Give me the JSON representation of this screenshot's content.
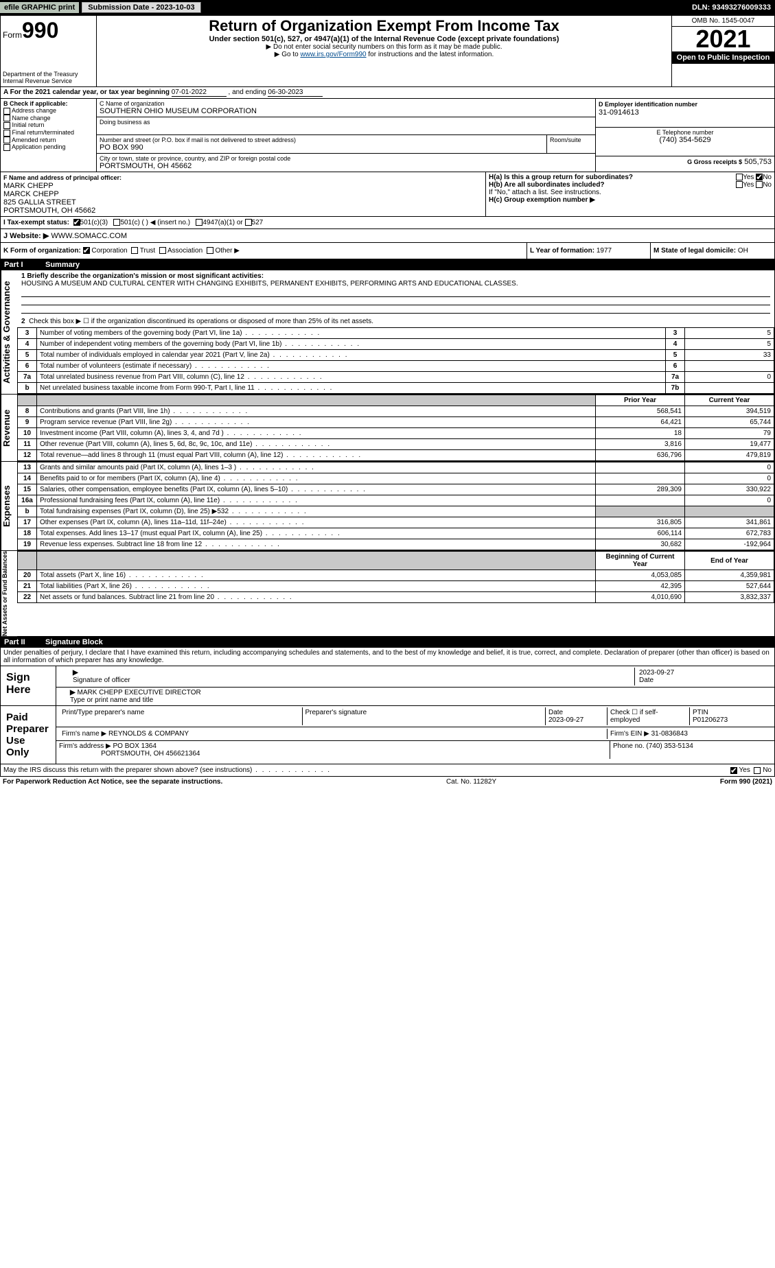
{
  "topbar": {
    "efile": "efile GRAPHIC print",
    "submit_btn": "Submission Date - 2023-10-03",
    "dln": "DLN: 93493276009333"
  },
  "header": {
    "form_word": "Form",
    "form_num": "990",
    "dept": "Department of the Treasury",
    "irs": "Internal Revenue Service",
    "title": "Return of Organization Exempt From Income Tax",
    "sub": "Under section 501(c), 527, or 4947(a)(1) of the Internal Revenue Code (except private foundations)",
    "note1": "▶ Do not enter social security numbers on this form as it may be made public.",
    "note2_pre": "▶ Go to ",
    "note2_link": "www.irs.gov/Form990",
    "note2_post": " for instructions and the latest information.",
    "omb": "OMB No. 1545-0047",
    "year": "2021",
    "opentopublic": "Open to Public Inspection"
  },
  "period": {
    "label_pre": "A For the 2021 calendar year, or tax year beginning ",
    "begin": "07-01-2022",
    "mid": " , and ending ",
    "end": "06-30-2023"
  },
  "boxB": {
    "label": "B Check if applicable:",
    "opts": [
      "Address change",
      "Name change",
      "Initial return",
      "Final return/terminated",
      "Amended return",
      "Application pending"
    ]
  },
  "boxC": {
    "name_label": "C Name of organization",
    "name": "SOUTHERN OHIO MUSEUM CORPORATION",
    "dba_label": "Doing business as",
    "dba": "",
    "street_label": "Number and street (or P.O. box if mail is not delivered to street address)",
    "room_label": "Room/suite",
    "street": "PO BOX 990",
    "city_label": "City or town, state or province, country, and ZIP or foreign postal code",
    "city": "PORTSMOUTH, OH  45662"
  },
  "boxD": {
    "label": "D Employer identification number",
    "value": "31-0914613"
  },
  "boxE": {
    "label": "E Telephone number",
    "value": "(740) 354-5629"
  },
  "boxG": {
    "label": "G Gross receipts $",
    "value": "505,753"
  },
  "boxF": {
    "label": "F  Name and address of principal officer:",
    "line1": "MARK CHEPP",
    "line2": "MARCK CHEPP",
    "line3": "825 GALLIA STREET",
    "line4": "PORTSMOUTH, OH  45662"
  },
  "boxH": {
    "a_label": "H(a)  Is this a group return for subordinates?",
    "a_yes": "Yes",
    "a_no": "No",
    "b_label": "H(b)  Are all subordinates included?",
    "b_note": "If \"No,\" attach a list. See instructions.",
    "c_label": "H(c)  Group exemption number ▶"
  },
  "boxI": {
    "label": "I   Tax-exempt status:",
    "o1": "501(c)(3)",
    "o2": "501(c) (  ) ◀ (insert no.)",
    "o3": "4947(a)(1) or",
    "o4": "527"
  },
  "boxJ": {
    "label": "J   Website: ▶",
    "value": "WWW.SOMACC.COM"
  },
  "boxK": {
    "label": "K Form of organization:",
    "o1": "Corporation",
    "o2": "Trust",
    "o3": "Association",
    "o4": "Other ▶"
  },
  "boxL": {
    "label": "L Year of formation:",
    "value": "1977"
  },
  "boxM": {
    "label": "M State of legal domicile:",
    "value": "OH"
  },
  "part1": {
    "header": "Summary",
    "sideA": "Activities & Governance",
    "sideR": "Revenue",
    "sideE": "Expenses",
    "sideN": "Net Assets or Fund Balances",
    "l1_label": "1  Briefly describe the organization's mission or most significant activities:",
    "l1_text": "HOUSING A MUSEUM AND CULTURAL CENTER WITH CHANGING EXHIBITS, PERMANENT EXHIBITS, PERFORMING ARTS AND EDUCATIONAL CLASSES.",
    "l2": "Check this box ▶ ☐ if the organization discontinued its operations or disposed of more than 25% of its net assets.",
    "rows_ag": [
      {
        "n": "3",
        "d": "Number of voting members of the governing body (Part VI, line 1a)",
        "box": "3",
        "v": "5"
      },
      {
        "n": "4",
        "d": "Number of independent voting members of the governing body (Part VI, line 1b)",
        "box": "4",
        "v": "5"
      },
      {
        "n": "5",
        "d": "Total number of individuals employed in calendar year 2021 (Part V, line 2a)",
        "box": "5",
        "v": "33"
      },
      {
        "n": "6",
        "d": "Total number of volunteers (estimate if necessary)",
        "box": "6",
        "v": ""
      },
      {
        "n": "7a",
        "d": "Total unrelated business revenue from Part VIII, column (C), line 12",
        "box": "7a",
        "v": "0"
      },
      {
        "n": "b",
        "d": "Net unrelated business taxable income from Form 990-T, Part I, line 11",
        "box": "7b",
        "v": ""
      }
    ],
    "col_prior": "Prior Year",
    "col_current": "Current Year",
    "rows_rev": [
      {
        "n": "8",
        "d": "Contributions and grants (Part VIII, line 1h)",
        "p": "568,541",
        "c": "394,519"
      },
      {
        "n": "9",
        "d": "Program service revenue (Part VIII, line 2g)",
        "p": "64,421",
        "c": "65,744"
      },
      {
        "n": "10",
        "d": "Investment income (Part VIII, column (A), lines 3, 4, and 7d )",
        "p": "18",
        "c": "79"
      },
      {
        "n": "11",
        "d": "Other revenue (Part VIII, column (A), lines 5, 6d, 8c, 9c, 10c, and 11e)",
        "p": "3,816",
        "c": "19,477"
      },
      {
        "n": "12",
        "d": "Total revenue—add lines 8 through 11 (must equal Part VIII, column (A), line 12)",
        "p": "636,796",
        "c": "479,819"
      }
    ],
    "rows_exp": [
      {
        "n": "13",
        "d": "Grants and similar amounts paid (Part IX, column (A), lines 1–3 )",
        "p": "",
        "c": "0"
      },
      {
        "n": "14",
        "d": "Benefits paid to or for members (Part IX, column (A), line 4)",
        "p": "",
        "c": "0"
      },
      {
        "n": "15",
        "d": "Salaries, other compensation, employee benefits (Part IX, column (A), lines 5–10)",
        "p": "289,309",
        "c": "330,922"
      },
      {
        "n": "16a",
        "d": "Professional fundraising fees (Part IX, column (A), line 11e)",
        "p": "",
        "c": "0"
      },
      {
        "n": "b",
        "d": "Total fundraising expenses (Part IX, column (D), line 25) ▶532",
        "p": "shade",
        "c": "shade"
      },
      {
        "n": "17",
        "d": "Other expenses (Part IX, column (A), lines 11a–11d, 11f–24e)",
        "p": "316,805",
        "c": "341,861"
      },
      {
        "n": "18",
        "d": "Total expenses. Add lines 13–17 (must equal Part IX, column (A), line 25)",
        "p": "606,114",
        "c": "672,783"
      },
      {
        "n": "19",
        "d": "Revenue less expenses. Subtract line 18 from line 12",
        "p": "30,682",
        "c": "-192,964"
      }
    ],
    "col_begin": "Beginning of Current Year",
    "col_end": "End of Year",
    "rows_net": [
      {
        "n": "20",
        "d": "Total assets (Part X, line 16)",
        "p": "4,053,085",
        "c": "4,359,981"
      },
      {
        "n": "21",
        "d": "Total liabilities (Part X, line 26)",
        "p": "42,395",
        "c": "527,644"
      },
      {
        "n": "22",
        "d": "Net assets or fund balances. Subtract line 21 from line 20",
        "p": "4,010,690",
        "c": "3,832,337"
      }
    ]
  },
  "part2": {
    "header": "Signature Block",
    "penalty": "Under penalties of perjury, I declare that I have examined this return, including accompanying schedules and statements, and to the best of my knowledge and belief, it is true, correct, and complete. Declaration of preparer (other than officer) is based on all information of which preparer has any knowledge.",
    "sign_here": "Sign Here",
    "sig_officer": "Signature of officer",
    "date_lbl": "Date",
    "date_val": "2023-09-27",
    "name_title": "MARK CHEPP EXECUTIVE DIRECTOR",
    "name_title_lbl": "Type or print name and title",
    "paid": "Paid Preparer Use Only",
    "prep_name_lbl": "Print/Type preparer's name",
    "prep_sig_lbl": "Preparer's signature",
    "prep_date_lbl": "Date",
    "prep_date": "2023-09-27",
    "self_emp": "Check ☐ if self-employed",
    "ptin_lbl": "PTIN",
    "ptin": "P01206273",
    "firm_name_lbl": "Firm's name   ▶",
    "firm_name": "REYNOLDS & COMPANY",
    "firm_ein_lbl": "Firm's EIN ▶",
    "firm_ein": "31-0836843",
    "firm_addr_lbl": "Firm's address ▶",
    "firm_addr1": "PO BOX 1364",
    "firm_addr2": "PORTSMOUTH, OH  456621364",
    "phone_lbl": "Phone no.",
    "phone": "(740) 353-5134",
    "discuss": "May the IRS discuss this return with the preparer shown above? (see instructions)",
    "yes": "Yes",
    "no": "No"
  },
  "footer": {
    "left": "For Paperwork Reduction Act Notice, see the separate instructions.",
    "mid": "Cat. No. 11282Y",
    "right_form": "Form ",
    "right_num": "990",
    "right_year": " (2021)"
  }
}
